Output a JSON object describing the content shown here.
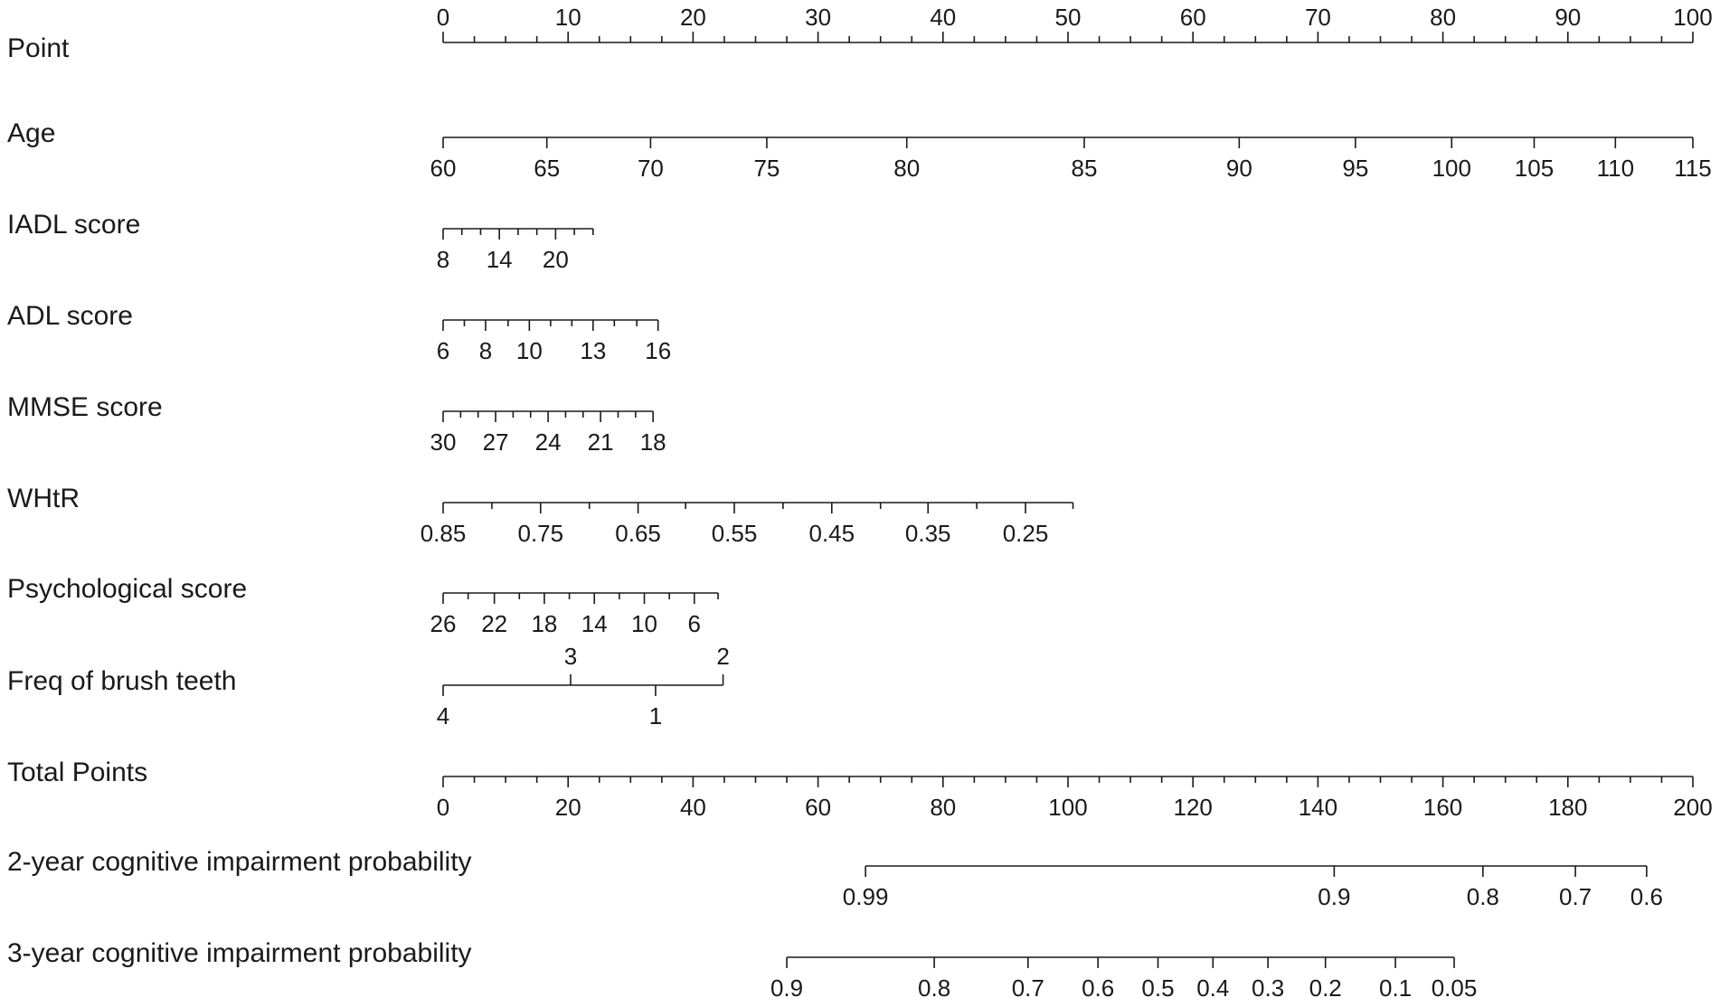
{
  "chart_data": {
    "type": "nomogram",
    "point_scale": [
      0,
      100
    ],
    "total_points_scale": [
      0,
      200
    ],
    "rows": [
      {
        "id": "point",
        "label": "Point",
        "ticks": [
          {
            "p": 0,
            "label": "0"
          },
          {
            "p": 10,
            "label": "10"
          },
          {
            "p": 20,
            "label": "20"
          },
          {
            "p": 30,
            "label": "30"
          },
          {
            "p": 40,
            "label": "40"
          },
          {
            "p": 50,
            "label": "50"
          },
          {
            "p": 60,
            "label": "60"
          },
          {
            "p": 70,
            "label": "70"
          },
          {
            "p": 80,
            "label": "80"
          },
          {
            "p": 90,
            "label": "90"
          },
          {
            "p": 100,
            "label": "100"
          }
        ],
        "minor_step": 2.5,
        "range": [
          0,
          100
        ]
      },
      {
        "id": "age",
        "label": "Age",
        "ticks": [
          {
            "p": 0,
            "label": "60"
          },
          {
            "p": 8.3,
            "label": "65"
          },
          {
            "p": 16.6,
            "label": "70"
          },
          {
            "p": 25.9,
            "label": "75"
          },
          {
            "p": 37.1,
            "label": "80"
          },
          {
            "p": 51.3,
            "label": "85"
          },
          {
            "p": 63.7,
            "label": "90"
          },
          {
            "p": 73.0,
            "label": "95"
          },
          {
            "p": 80.7,
            "label": "100"
          },
          {
            "p": 87.3,
            "label": "105"
          },
          {
            "p": 93.8,
            "label": "110"
          },
          {
            "p": 100,
            "label": "115"
          }
        ],
        "range": [
          0,
          100
        ]
      },
      {
        "id": "iadl",
        "label": "IADL score",
        "ticks": [
          {
            "p": 0,
            "label": "8"
          },
          {
            "p": 4.5,
            "label": "14"
          },
          {
            "p": 9.0,
            "label": "20"
          }
        ],
        "minor_ticks": [
          1.5,
          3.0,
          6.0,
          7.5,
          10.5,
          12.0
        ],
        "range": [
          0,
          12.0
        ]
      },
      {
        "id": "adl",
        "label": "ADL score",
        "ticks": [
          {
            "p": 0,
            "label": "6"
          },
          {
            "p": 3.4,
            "label": "8"
          },
          {
            "p": 6.9,
            "label": "10"
          },
          {
            "p": 12.0,
            "label": "13"
          },
          {
            "p": 17.2,
            "label": "16"
          }
        ],
        "minor_ticks": [
          1.7,
          5.2,
          8.6,
          10.3,
          13.7,
          15.5
        ],
        "range": [
          0,
          17.2
        ]
      },
      {
        "id": "mmse",
        "label": "MMSE score",
        "ticks": [
          {
            "p": 0,
            "label": "30"
          },
          {
            "p": 4.2,
            "label": "27"
          },
          {
            "p": 8.4,
            "label": "24"
          },
          {
            "p": 12.6,
            "label": "21"
          },
          {
            "p": 16.8,
            "label": "18"
          }
        ],
        "minor_ticks": [
          1.4,
          2.8,
          5.6,
          7.0,
          9.8,
          11.2,
          14.0,
          15.4
        ],
        "range": [
          0,
          16.8
        ]
      },
      {
        "id": "whtr",
        "label": "WHtR",
        "ticks": [
          {
            "p": 0,
            "label": "0.85"
          },
          {
            "p": 7.8,
            "label": "0.75"
          },
          {
            "p": 15.6,
            "label": "0.65"
          },
          {
            "p": 23.3,
            "label": "0.55"
          },
          {
            "p": 31.1,
            "label": "0.45"
          },
          {
            "p": 38.8,
            "label": "0.35"
          },
          {
            "p": 46.6,
            "label": "0.25"
          }
        ],
        "minor_ticks": [
          3.9,
          11.7,
          19.4,
          27.2,
          35.0,
          42.7,
          50.4
        ],
        "range": [
          0,
          50.4
        ]
      },
      {
        "id": "psych",
        "label": "Psychological score",
        "ticks": [
          {
            "p": 0,
            "label": "26"
          },
          {
            "p": 4.1,
            "label": "22"
          },
          {
            "p": 8.1,
            "label": "18"
          },
          {
            "p": 12.1,
            "label": "14"
          },
          {
            "p": 16.1,
            "label": "10"
          },
          {
            "p": 20.1,
            "label": "6"
          }
        ],
        "minor_ticks": [
          2.0,
          6.1,
          10.1,
          14.1,
          18.1,
          22.0
        ],
        "range": [
          0,
          22.0
        ]
      },
      {
        "id": "brush",
        "label": "Freq of brush teeth",
        "ticks": [
          {
            "p": 0,
            "label": "4",
            "side": "below"
          },
          {
            "p": 10.2,
            "label": "3",
            "side": "above"
          },
          {
            "p": 17.0,
            "label": "1",
            "side": "below"
          },
          {
            "p": 22.4,
            "label": "2",
            "side": "above"
          }
        ],
        "range": [
          0,
          22.4
        ]
      },
      {
        "id": "total",
        "label": "Total Points",
        "ticks": [
          {
            "p": 0,
            "label": "0"
          },
          {
            "p": 10,
            "label": "20"
          },
          {
            "p": 20,
            "label": "40"
          },
          {
            "p": 30,
            "label": "60"
          },
          {
            "p": 40,
            "label": "80"
          },
          {
            "p": 50,
            "label": "100"
          },
          {
            "p": 60,
            "label": "120"
          },
          {
            "p": 70,
            "label": "140"
          },
          {
            "p": 80,
            "label": "160"
          },
          {
            "p": 90,
            "label": "180"
          },
          {
            "p": 100,
            "label": "200"
          }
        ],
        "minor_step": 2.5,
        "range": [
          0,
          100
        ]
      },
      {
        "id": "prob2",
        "label": "2-year cognitive impairment probability",
        "ticks": [
          {
            "p": 33.8,
            "label": "0.99"
          },
          {
            "p": 71.3,
            "label": "0.9"
          },
          {
            "p": 83.2,
            "label": "0.8"
          },
          {
            "p": 90.6,
            "label": "0.7"
          },
          {
            "p": 96.3,
            "label": "0.6"
          }
        ],
        "range": [
          33.8,
          96.3
        ]
      },
      {
        "id": "prob3",
        "label": "3-year cognitive impairment probability",
        "ticks": [
          {
            "p": 27.5,
            "label": "0.9"
          },
          {
            "p": 39.3,
            "label": "0.8"
          },
          {
            "p": 46.8,
            "label": "0.7"
          },
          {
            "p": 52.4,
            "label": "0.6"
          },
          {
            "p": 57.2,
            "label": "0.5"
          },
          {
            "p": 61.6,
            "label": "0.4"
          },
          {
            "p": 66.0,
            "label": "0.3"
          },
          {
            "p": 70.6,
            "label": "0.2"
          },
          {
            "p": 76.2,
            "label": "0.1"
          },
          {
            "p": 80.9,
            "label": "0.05"
          }
        ],
        "range": [
          27.5,
          80.9
        ]
      }
    ]
  }
}
